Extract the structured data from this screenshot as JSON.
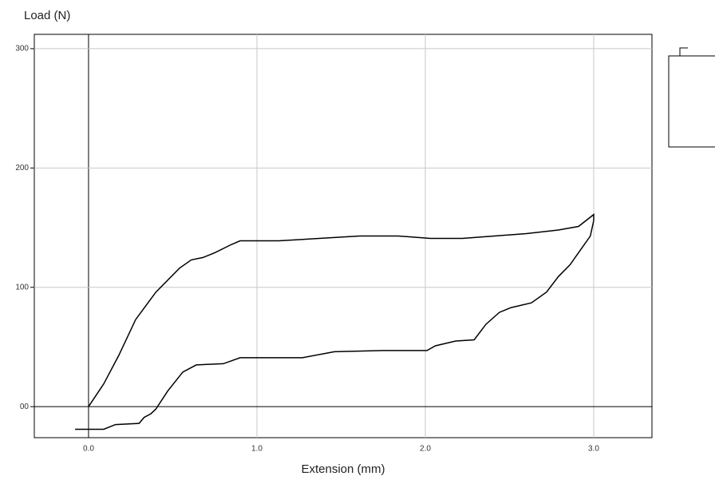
{
  "chart_data": {
    "type": "line",
    "y_label": "Load (N)",
    "x_label": "Extension (mm)",
    "xlim": [
      -0.322,
      3.346
    ],
    "ylim": [
      -26,
      312
    ],
    "xticks": [
      {
        "value": 0,
        "label": "0.0"
      },
      {
        "value": 1,
        "label": "1.0"
      },
      {
        "value": 2,
        "label": "2.0"
      },
      {
        "value": 3,
        "label": "3.0"
      }
    ],
    "yticks": [
      {
        "value": 0,
        "label": "00"
      },
      100,
      200,
      300
    ],
    "grid": true,
    "series": [
      {
        "color": "#000000",
        "x": [
          0,
          0.09,
          0.18,
          0.28,
          0.4,
          0.54,
          0.61,
          0.68,
          0.75,
          0.85,
          0.9,
          1.13,
          1.37,
          1.61,
          1.84,
          2.03,
          2.22,
          2.41,
          2.6,
          2.79,
          2.91,
          3.0,
          3.0,
          2.98,
          2.93,
          2.86,
          2.79,
          2.72,
          2.63,
          2.51,
          2.44,
          2.36,
          2.29,
          2.18,
          2.06,
          2.01,
          1.75,
          1.46,
          1.27,
          0.9,
          0.8,
          0.64,
          0.56,
          0.47,
          0.4,
          0.37,
          0.33,
          0.3,
          0.16,
          0.09,
          -0.08
        ],
        "values": [
          0,
          19,
          43,
          73,
          96,
          116,
          123,
          125,
          129,
          136,
          139,
          139,
          141,
          143,
          143,
          141,
          141,
          143,
          145,
          148,
          151,
          161,
          156,
          143,
          133,
          119,
          109,
          96,
          87,
          83,
          79,
          69,
          56,
          55,
          51,
          47,
          47,
          46,
          41,
          41,
          36,
          35,
          29,
          13,
          -2,
          -6,
          -9,
          -14,
          -15,
          -19,
          -19
        ]
      }
    ]
  }
}
